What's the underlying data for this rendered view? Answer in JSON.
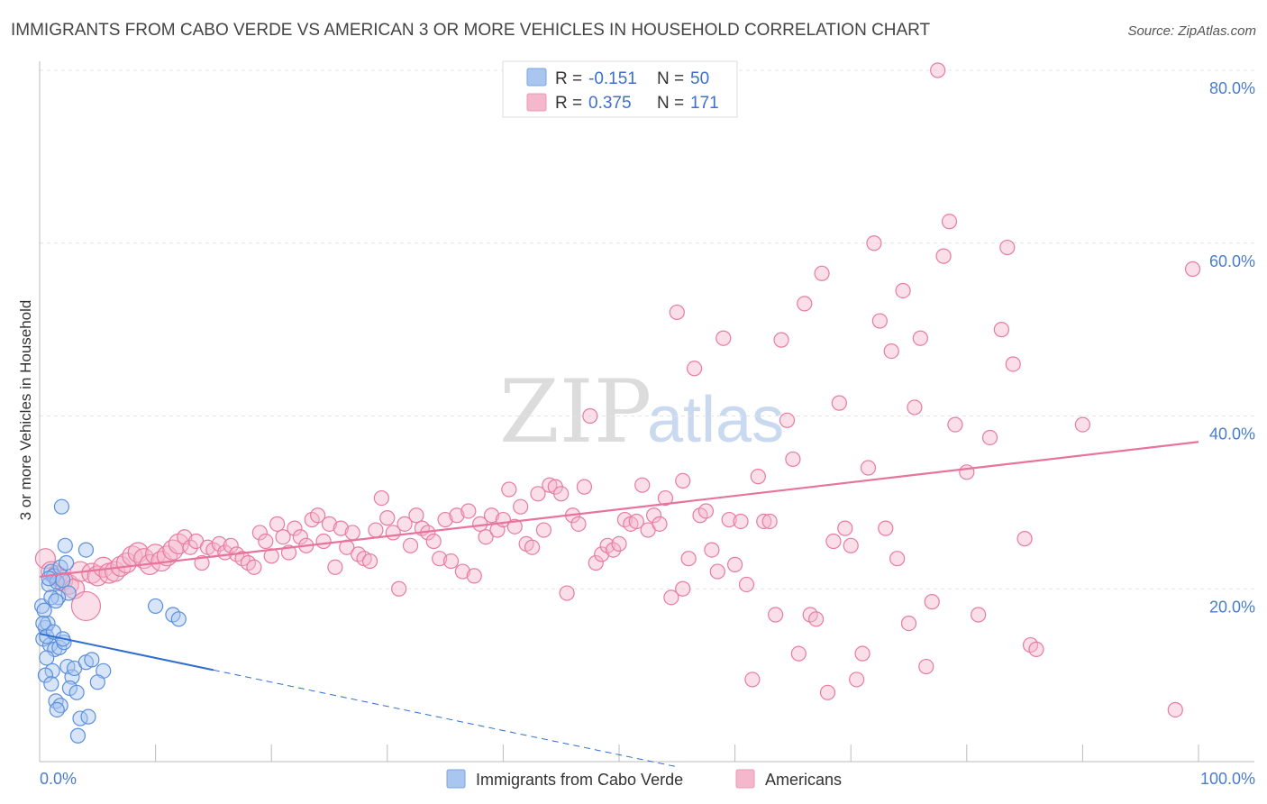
{
  "title": "IMMIGRANTS FROM CABO VERDE VS AMERICAN 3 OR MORE VEHICLES IN HOUSEHOLD CORRELATION CHART",
  "source": "Source: ZipAtlas.com",
  "watermark": {
    "zip": "ZIP",
    "atlas": "atlas"
  },
  "colors": {
    "blue": "#5b8fdc",
    "blue_fill": "#a9c6f0",
    "blue_line": "#2f6fd0",
    "pink": "#e87ba1",
    "pink_fill": "#f4b7cb",
    "pink_line": "#e8739c"
  },
  "legend_top": {
    "rows": [
      {
        "r_label": "R =",
        "r_value": "-0.151",
        "n_label": "N =",
        "n_value": "50"
      },
      {
        "r_label": "R =",
        "r_value": "0.375",
        "n_label": "N =",
        "n_value": "171"
      }
    ]
  },
  "chart_data": {
    "type": "scatter",
    "xlabel": "",
    "ylabel": "3 or more Vehicles in Household",
    "xlim": [
      0,
      100
    ],
    "ylim": [
      0,
      80
    ],
    "x_tick_labels": [
      "0.0%",
      "100.0%"
    ],
    "y_ticks": [
      20,
      40,
      60,
      80
    ],
    "y_tick_labels": [
      "20.0%",
      "40.0%",
      "60.0%",
      "80.0%"
    ],
    "grid": true,
    "legend": "bottom-center",
    "series": [
      {
        "name": "Immigrants from Cabo Verde",
        "r": -0.151,
        "n": 50,
        "trend": {
          "x0": 0,
          "y0": 14.8,
          "x1": 15,
          "y1": 10.6,
          "dash_to_x": 55,
          "dash_to_y": -0.6
        },
        "points": [
          [
            0.2,
            18.0
          ],
          [
            0.5,
            15.5
          ],
          [
            0.3,
            14.2
          ],
          [
            0.8,
            20.5
          ],
          [
            1.0,
            22.0
          ],
          [
            1.2,
            21.5
          ],
          [
            1.5,
            20.8
          ],
          [
            1.8,
            22.5
          ],
          [
            2.0,
            21.0
          ],
          [
            2.5,
            19.5
          ],
          [
            2.3,
            23.0
          ],
          [
            2.2,
            25.0
          ],
          [
            1.9,
            29.5
          ],
          [
            1.6,
            19.0
          ],
          [
            1.0,
            19.0
          ],
          [
            0.7,
            16.0
          ],
          [
            0.4,
            17.5
          ],
          [
            0.9,
            13.5
          ],
          [
            1.3,
            13.0
          ],
          [
            1.7,
            13.2
          ],
          [
            2.1,
            13.8
          ],
          [
            0.6,
            12.0
          ],
          [
            1.1,
            10.5
          ],
          [
            2.4,
            11.0
          ],
          [
            2.8,
            9.8
          ],
          [
            3.0,
            10.8
          ],
          [
            0.5,
            10.0
          ],
          [
            1.0,
            9.0
          ],
          [
            2.6,
            8.5
          ],
          [
            3.2,
            8.0
          ],
          [
            1.4,
            7.0
          ],
          [
            1.8,
            6.5
          ],
          [
            3.5,
            5.0
          ],
          [
            4.2,
            5.2
          ],
          [
            1.5,
            6.0
          ],
          [
            3.3,
            3.0
          ],
          [
            4.0,
            11.5
          ],
          [
            4.5,
            11.8
          ],
          [
            5.5,
            10.5
          ],
          [
            5.0,
            9.2
          ],
          [
            10.0,
            18.0
          ],
          [
            11.5,
            17.0
          ],
          [
            12.0,
            16.5
          ],
          [
            4.0,
            24.5
          ],
          [
            0.3,
            16.0
          ],
          [
            0.6,
            14.5
          ],
          [
            1.2,
            15.0
          ],
          [
            2.0,
            14.2
          ],
          [
            0.8,
            21.2
          ],
          [
            1.4,
            18.6
          ]
        ]
      },
      {
        "name": "Americans",
        "r": 0.375,
        "n": 171,
        "trend": {
          "x0": 0,
          "y0": 21.4,
          "x1": 100,
          "y1": 37.0
        },
        "points": [
          [
            0.5,
            23.5
          ],
          [
            1.0,
            22.0
          ],
          [
            1.5,
            21.5
          ],
          [
            2.0,
            21.0
          ],
          [
            2.5,
            20.5
          ],
          [
            3.0,
            20.0
          ],
          [
            3.5,
            22.0
          ],
          [
            4.0,
            18.0
          ],
          [
            4.5,
            21.8
          ],
          [
            5.0,
            21.5
          ],
          [
            5.5,
            22.5
          ],
          [
            6.0,
            21.8
          ],
          [
            6.5,
            22.0
          ],
          [
            7.0,
            22.6
          ],
          [
            7.5,
            23.0
          ],
          [
            8.0,
            23.8
          ],
          [
            8.5,
            24.2
          ],
          [
            9.0,
            23.5
          ],
          [
            9.5,
            22.8
          ],
          [
            10.0,
            24.0
          ],
          [
            10.5,
            23.2
          ],
          [
            11.0,
            23.8
          ],
          [
            11.5,
            24.5
          ],
          [
            12.0,
            25.2
          ],
          [
            12.5,
            26.0
          ],
          [
            13.0,
            24.8
          ],
          [
            13.5,
            25.5
          ],
          [
            14.0,
            23.0
          ],
          [
            14.5,
            24.8
          ],
          [
            15.0,
            24.5
          ],
          [
            15.5,
            25.2
          ],
          [
            16.0,
            24.2
          ],
          [
            16.5,
            25.0
          ],
          [
            17.0,
            24.0
          ],
          [
            17.5,
            23.5
          ],
          [
            18.0,
            23.0
          ],
          [
            18.5,
            22.5
          ],
          [
            19.0,
            26.5
          ],
          [
            19.5,
            25.5
          ],
          [
            20.0,
            23.8
          ],
          [
            20.5,
            27.5
          ],
          [
            21.0,
            26.0
          ],
          [
            21.5,
            24.2
          ],
          [
            22.0,
            27.0
          ],
          [
            22.5,
            26.0
          ],
          [
            23.0,
            25.0
          ],
          [
            23.5,
            28.0
          ],
          [
            24.0,
            28.5
          ],
          [
            24.5,
            25.5
          ],
          [
            25.0,
            27.5
          ],
          [
            25.5,
            22.5
          ],
          [
            26.0,
            27.0
          ],
          [
            26.5,
            24.8
          ],
          [
            27.0,
            26.5
          ],
          [
            27.5,
            24.0
          ],
          [
            28.0,
            23.5
          ],
          [
            28.5,
            23.2
          ],
          [
            29.0,
            26.8
          ],
          [
            29.5,
            30.5
          ],
          [
            30.0,
            28.2
          ],
          [
            30.5,
            26.5
          ],
          [
            31.0,
            20.0
          ],
          [
            31.5,
            27.5
          ],
          [
            32.0,
            25.0
          ],
          [
            32.5,
            28.5
          ],
          [
            33.0,
            27.0
          ],
          [
            33.5,
            26.5
          ],
          [
            34.0,
            25.5
          ],
          [
            34.5,
            23.5
          ],
          [
            35.0,
            28.0
          ],
          [
            35.5,
            23.2
          ],
          [
            36.0,
            28.5
          ],
          [
            36.5,
            22.0
          ],
          [
            37.0,
            29.0
          ],
          [
            37.5,
            21.5
          ],
          [
            38.0,
            27.5
          ],
          [
            38.5,
            26.0
          ],
          [
            39.0,
            28.5
          ],
          [
            39.5,
            26.8
          ],
          [
            40.0,
            28.0
          ],
          [
            40.5,
            31.5
          ],
          [
            41.0,
            27.2
          ],
          [
            41.5,
            29.5
          ],
          [
            42.0,
            25.2
          ],
          [
            42.5,
            24.8
          ],
          [
            43.0,
            31.0
          ],
          [
            43.5,
            26.8
          ],
          [
            44.0,
            32.0
          ],
          [
            44.5,
            31.8
          ],
          [
            45.0,
            31.0
          ],
          [
            45.5,
            19.5
          ],
          [
            46.0,
            28.5
          ],
          [
            46.5,
            27.5
          ],
          [
            47.0,
            31.8
          ],
          [
            47.5,
            40.0
          ],
          [
            48.0,
            23.0
          ],
          [
            48.5,
            24.0
          ],
          [
            49.0,
            25.0
          ],
          [
            49.5,
            24.5
          ],
          [
            50.0,
            25.2
          ],
          [
            50.5,
            28.0
          ],
          [
            51.0,
            27.5
          ],
          [
            51.5,
            27.8
          ],
          [
            52.0,
            32.0
          ],
          [
            52.5,
            26.8
          ],
          [
            53.0,
            28.5
          ],
          [
            53.5,
            27.5
          ],
          [
            54.0,
            30.5
          ],
          [
            54.5,
            19.0
          ],
          [
            55.0,
            52.0
          ],
          [
            55.5,
            20.0
          ],
          [
            55.5,
            32.5
          ],
          [
            56.0,
            23.5
          ],
          [
            56.5,
            45.5
          ],
          [
            57.0,
            28.5
          ],
          [
            57.5,
            29.0
          ],
          [
            58.0,
            24.5
          ],
          [
            58.5,
            22.0
          ],
          [
            59.0,
            49.0
          ],
          [
            59.5,
            28.0
          ],
          [
            60.0,
            22.8
          ],
          [
            60.5,
            27.8
          ],
          [
            61.0,
            20.5
          ],
          [
            61.5,
            9.5
          ],
          [
            62.0,
            33.0
          ],
          [
            62.5,
            27.8
          ],
          [
            63.0,
            27.8
          ],
          [
            63.5,
            17.0
          ],
          [
            64.0,
            48.8
          ],
          [
            64.5,
            39.5
          ],
          [
            65.0,
            35.0
          ],
          [
            65.5,
            12.5
          ],
          [
            66.0,
            53.0
          ],
          [
            66.5,
            17.0
          ],
          [
            67.0,
            16.5
          ],
          [
            67.5,
            56.5
          ],
          [
            68.0,
            8.0
          ],
          [
            68.5,
            25.5
          ],
          [
            69.0,
            41.5
          ],
          [
            69.5,
            27.0
          ],
          [
            70.0,
            25.0
          ],
          [
            70.5,
            9.5
          ],
          [
            71.0,
            12.5
          ],
          [
            71.5,
            34.0
          ],
          [
            72.0,
            60.0
          ],
          [
            72.5,
            51.0
          ],
          [
            73.0,
            27.0
          ],
          [
            73.5,
            47.5
          ],
          [
            74.0,
            23.5
          ],
          [
            74.5,
            54.5
          ],
          [
            75.0,
            16.0
          ],
          [
            75.5,
            41.0
          ],
          [
            76.0,
            49.0
          ],
          [
            76.5,
            11.0
          ],
          [
            77.0,
            18.5
          ],
          [
            77.5,
            80.0
          ],
          [
            78.0,
            58.5
          ],
          [
            78.5,
            62.5
          ],
          [
            79.0,
            39.0
          ],
          [
            80.0,
            33.5
          ],
          [
            81.0,
            17.0
          ],
          [
            82.0,
            37.5
          ],
          [
            83.0,
            50.0
          ],
          [
            83.5,
            59.5
          ],
          [
            84.0,
            46.0
          ],
          [
            85.0,
            25.8
          ],
          [
            85.5,
            13.5
          ],
          [
            86.0,
            13.0
          ],
          [
            90.0,
            39.0
          ],
          [
            98.0,
            6.0
          ],
          [
            99.5,
            57.0
          ]
        ]
      }
    ]
  },
  "legend_bottom": {
    "items": [
      {
        "label": "Immigrants from Cabo Verde"
      },
      {
        "label": "Americans"
      }
    ]
  }
}
